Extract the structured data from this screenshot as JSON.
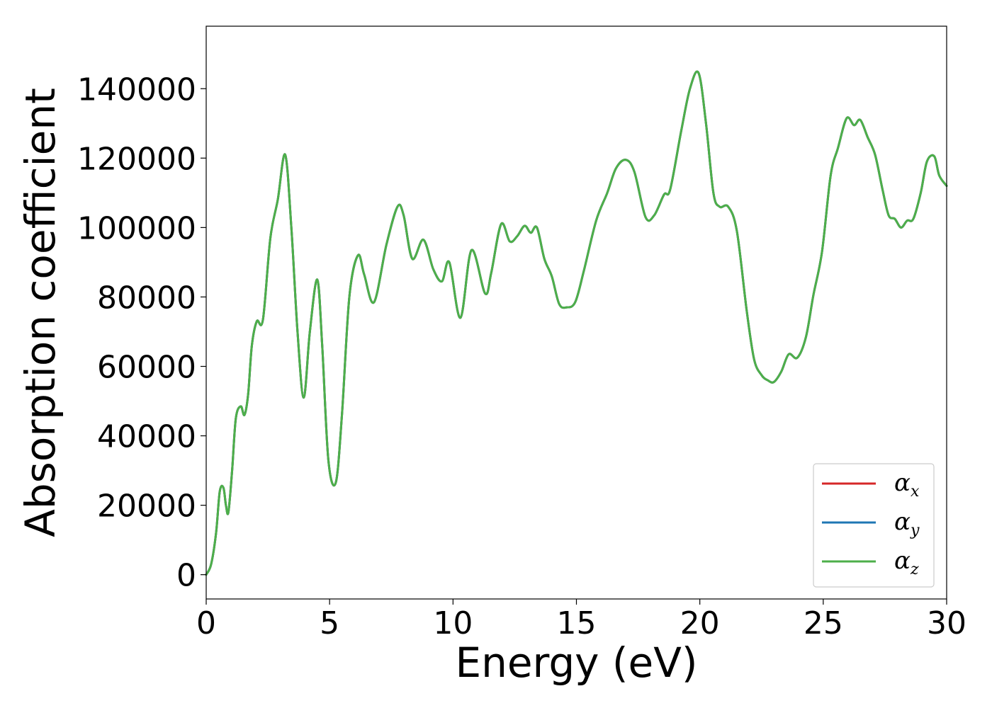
{
  "chart_data": {
    "type": "line",
    "title": "",
    "xlabel": "Energy (eV)",
    "ylabel": "Absorption coefficient",
    "xlim": [
      0,
      30
    ],
    "ylim": [
      -7000,
      158000
    ],
    "xticks": [
      "0",
      "5",
      "10",
      "15",
      "20",
      "25",
      "30"
    ],
    "yticks": [
      "0",
      "20000",
      "40000",
      "60000",
      "80000",
      "100000",
      "120000",
      "140000"
    ],
    "grid": false,
    "legend": {
      "position": "lower-right",
      "entries": [
        {
          "base": "α",
          "sub": "x",
          "color": "#d62728"
        },
        {
          "base": "α",
          "sub": "y",
          "color": "#1f77b4"
        },
        {
          "base": "α",
          "sub": "z",
          "color": "#4daf4a"
        }
      ]
    },
    "series": [
      {
        "name": "αx",
        "color": "#d62728",
        "x": [
          0,
          0.2,
          0.4,
          0.55,
          0.7,
          0.8,
          0.9,
          1.05,
          1.2,
          1.4,
          1.55,
          1.7,
          1.85,
          2.05,
          2.3,
          2.6,
          2.9,
          3.2,
          3.45,
          3.7,
          3.95,
          4.2,
          4.5,
          4.7,
          4.95,
          5.25,
          5.5,
          5.8,
          6.15,
          6.4,
          6.8,
          7.3,
          7.75,
          8.0,
          8.35,
          8.8,
          9.2,
          9.55,
          9.85,
          10.3,
          10.75,
          11.3,
          11.55,
          11.95,
          12.3,
          12.6,
          12.9,
          13.15,
          13.4,
          13.7,
          14.0,
          14.3,
          14.6,
          14.95,
          15.3,
          15.8,
          16.25,
          16.6,
          17.0,
          17.35,
          17.8,
          18.15,
          18.55,
          18.8,
          19.25,
          19.6,
          19.95,
          20.25,
          20.55,
          20.8,
          21.15,
          21.5,
          21.9,
          22.2,
          22.5,
          22.75,
          23.0,
          23.3,
          23.6,
          23.95,
          24.3,
          24.6,
          24.95,
          25.3,
          25.6,
          25.95,
          26.25,
          26.5,
          26.8,
          27.1,
          27.4,
          27.65,
          27.9,
          28.15,
          28.4,
          28.65,
          28.95,
          29.2,
          29.5,
          29.7,
          30.0
        ],
        "y": [
          0,
          3000,
          12000,
          24000,
          25000,
          20000,
          18000,
          30000,
          45000,
          48500,
          46000,
          52000,
          66000,
          73000,
          73500,
          97000,
          108000,
          121000,
          100000,
          70000,
          51000,
          70000,
          85000,
          66000,
          33000,
          26500,
          46000,
          80000,
          92000,
          86500,
          78500,
          95000,
          106000,
          103500,
          91000,
          96500,
          88000,
          84500,
          90000,
          74000,
          93500,
          81000,
          87000,
          101000,
          96000,
          97500,
          100500,
          98500,
          100000,
          91000,
          86000,
          78000,
          77000,
          78500,
          87500,
          102000,
          110000,
          117000,
          119500,
          116000,
          103000,
          103500,
          109500,
          111000,
          128000,
          140000,
          144500,
          130000,
          110000,
          106000,
          106000,
          99000,
          76000,
          62000,
          57500,
          56000,
          55500,
          58500,
          63500,
          62500,
          68500,
          80500,
          93000,
          115000,
          123000,
          131500,
          129500,
          131000,
          126000,
          121000,
          111000,
          103500,
          102500,
          100000,
          102000,
          102500,
          110000,
          119000,
          120500,
          115000,
          112000
        ]
      },
      {
        "name": "αy",
        "color": "#1f77b4",
        "x": [
          0,
          0.2,
          0.4,
          0.55,
          0.7,
          0.8,
          0.9,
          1.05,
          1.2,
          1.4,
          1.55,
          1.7,
          1.85,
          2.05,
          2.3,
          2.6,
          2.9,
          3.2,
          3.45,
          3.7,
          3.95,
          4.2,
          4.5,
          4.7,
          4.95,
          5.25,
          5.5,
          5.8,
          6.15,
          6.4,
          6.8,
          7.3,
          7.75,
          8.0,
          8.35,
          8.8,
          9.2,
          9.55,
          9.85,
          10.3,
          10.75,
          11.3,
          11.55,
          11.95,
          12.3,
          12.6,
          12.9,
          13.15,
          13.4,
          13.7,
          14.0,
          14.3,
          14.6,
          14.95,
          15.3,
          15.8,
          16.25,
          16.6,
          17.0,
          17.35,
          17.8,
          18.15,
          18.55,
          18.8,
          19.25,
          19.6,
          19.95,
          20.25,
          20.55,
          20.8,
          21.15,
          21.5,
          21.9,
          22.2,
          22.5,
          22.75,
          23.0,
          23.3,
          23.6,
          23.95,
          24.3,
          24.6,
          24.95,
          25.3,
          25.6,
          25.95,
          26.25,
          26.5,
          26.8,
          27.1,
          27.4,
          27.65,
          27.9,
          28.15,
          28.4,
          28.65,
          28.95,
          29.2,
          29.5,
          29.7,
          30.0
        ],
        "y": [
          0,
          3000,
          12000,
          24000,
          25000,
          20000,
          18000,
          30000,
          45000,
          48500,
          46000,
          52000,
          66000,
          73000,
          73500,
          97000,
          108000,
          121000,
          100000,
          70000,
          51000,
          70000,
          85000,
          66000,
          33000,
          26500,
          46000,
          80000,
          92000,
          86500,
          78500,
          95000,
          106000,
          103500,
          91000,
          96500,
          88000,
          84500,
          90000,
          74000,
          93500,
          81000,
          87000,
          101000,
          96000,
          97500,
          100500,
          98500,
          100000,
          91000,
          86000,
          78000,
          77000,
          78500,
          87500,
          102000,
          110000,
          117000,
          119500,
          116000,
          103000,
          103500,
          109500,
          111000,
          128000,
          140000,
          144500,
          130000,
          110000,
          106000,
          106000,
          99000,
          76000,
          62000,
          57500,
          56000,
          55500,
          58500,
          63500,
          62500,
          68500,
          80500,
          93000,
          115000,
          123000,
          131500,
          129500,
          131000,
          126000,
          121000,
          111000,
          103500,
          102500,
          100000,
          102000,
          102500,
          110000,
          119000,
          120500,
          115000,
          112000
        ]
      },
      {
        "name": "αz",
        "color": "#4daf4a",
        "x": [
          0,
          0.2,
          0.4,
          0.55,
          0.7,
          0.8,
          0.9,
          1.05,
          1.2,
          1.4,
          1.55,
          1.7,
          1.85,
          2.05,
          2.3,
          2.6,
          2.9,
          3.2,
          3.45,
          3.7,
          3.95,
          4.2,
          4.5,
          4.7,
          4.95,
          5.25,
          5.5,
          5.8,
          6.15,
          6.4,
          6.8,
          7.3,
          7.75,
          8.0,
          8.35,
          8.8,
          9.2,
          9.55,
          9.85,
          10.3,
          10.75,
          11.3,
          11.55,
          11.95,
          12.3,
          12.6,
          12.9,
          13.15,
          13.4,
          13.7,
          14.0,
          14.3,
          14.6,
          14.95,
          15.3,
          15.8,
          16.25,
          16.6,
          17.0,
          17.35,
          17.8,
          18.15,
          18.55,
          18.8,
          19.25,
          19.6,
          19.95,
          20.25,
          20.55,
          20.8,
          21.15,
          21.5,
          21.9,
          22.2,
          22.5,
          22.75,
          23.0,
          23.3,
          23.6,
          23.95,
          24.3,
          24.6,
          24.95,
          25.3,
          25.6,
          25.95,
          26.25,
          26.5,
          26.8,
          27.1,
          27.4,
          27.65,
          27.9,
          28.15,
          28.4,
          28.65,
          28.95,
          29.2,
          29.5,
          29.7,
          30.0
        ],
        "y": [
          0,
          3000,
          12000,
          24000,
          25000,
          20000,
          18000,
          30000,
          45000,
          48500,
          46000,
          52000,
          66000,
          73000,
          73500,
          97000,
          108000,
          121000,
          100000,
          70000,
          51000,
          70000,
          85000,
          66000,
          33000,
          26500,
          46000,
          80000,
          92000,
          86500,
          78500,
          95000,
          106000,
          103500,
          91000,
          96500,
          88000,
          84500,
          90000,
          74000,
          93500,
          81000,
          87000,
          101000,
          96000,
          97500,
          100500,
          98500,
          100000,
          91000,
          86000,
          78000,
          77000,
          78500,
          87500,
          102000,
          110000,
          117000,
          119500,
          116000,
          103000,
          103500,
          109500,
          111000,
          128000,
          140000,
          144500,
          130000,
          110000,
          106000,
          106000,
          99000,
          76000,
          62000,
          57500,
          56000,
          55500,
          58500,
          63500,
          62500,
          68500,
          80500,
          93000,
          115000,
          123000,
          131500,
          129500,
          131000,
          126000,
          121000,
          111000,
          103500,
          102500,
          100000,
          102000,
          102500,
          110000,
          119000,
          120500,
          115000,
          112000
        ]
      }
    ]
  }
}
